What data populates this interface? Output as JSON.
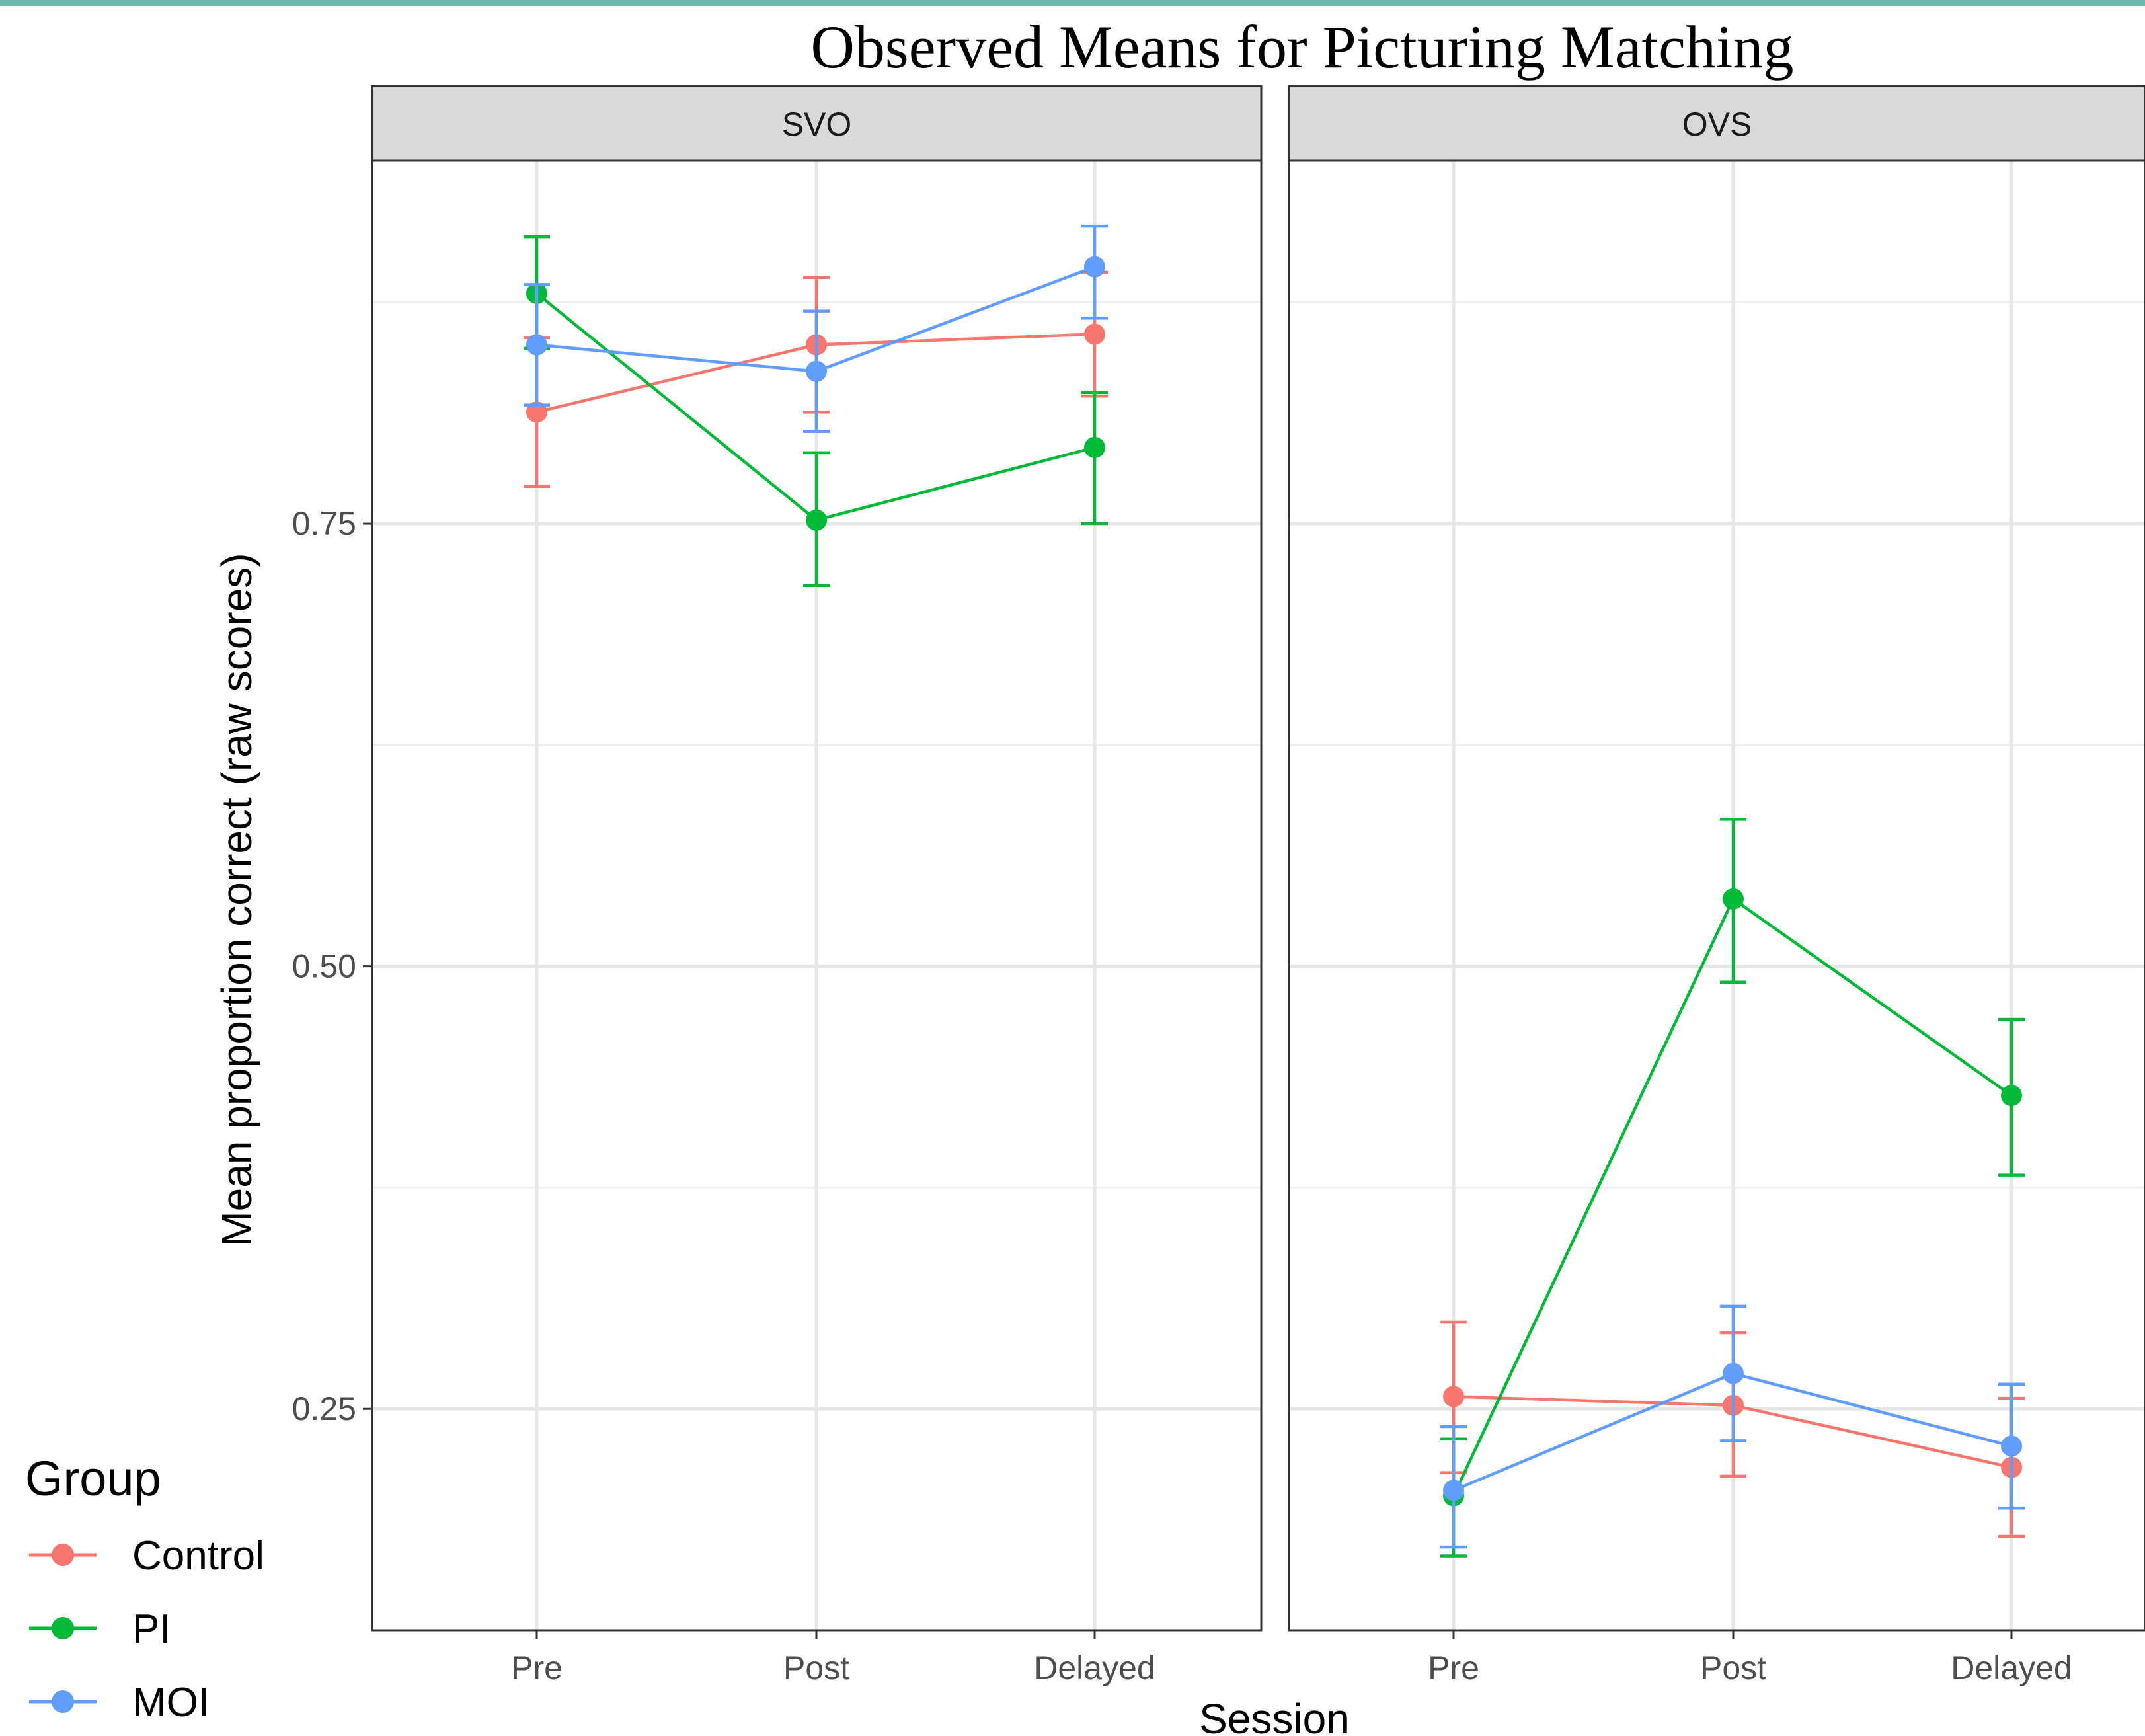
{
  "chart_data": {
    "type": "line",
    "title": "Observed Means for Picturing Matching",
    "xlabel": "Session",
    "ylabel": "Mean proportion correct (raw scores)",
    "categories": [
      "Pre",
      "Post",
      "Delayed"
    ],
    "ylim": [
      0.125,
      0.955
    ],
    "yticks": [
      0.25,
      0.5,
      0.75
    ],
    "ytick_labels": [
      "0.25",
      "0.50",
      "0.75"
    ],
    "grid": true,
    "legend": {
      "title": "Group",
      "placement": "bottom-left"
    },
    "panels": [
      {
        "label": "SVO",
        "series": [
          {
            "name": "Control",
            "color": "#f8766d",
            "values": [
              0.813,
              0.851,
              0.857
            ],
            "lower": [
              0.771,
              0.813,
              0.822
            ],
            "upper": [
              0.855,
              0.889,
              0.892
            ]
          },
          {
            "name": "PI",
            "color": "#00ba38",
            "values": [
              0.88,
              0.752,
              0.793
            ],
            "lower": [
              0.849,
              0.715,
              0.75
            ],
            "upper": [
              0.912,
              0.79,
              0.824
            ]
          },
          {
            "name": "MOI",
            "color": "#619cff",
            "values": [
              0.851,
              0.836,
              0.895
            ],
            "lower": [
              0.817,
              0.802,
              0.866
            ],
            "upper": [
              0.885,
              0.87,
              0.918
            ]
          }
        ]
      },
      {
        "label": "OVS",
        "series": [
          {
            "name": "Control",
            "color": "#f8766d",
            "values": [
              0.257,
              0.252,
              0.217
            ],
            "lower": [
              0.214,
              0.212,
              0.178
            ],
            "upper": [
              0.299,
              0.293,
              0.256
            ]
          },
          {
            "name": "PI",
            "color": "#00ba38",
            "values": [
              0.201,
              0.538,
              0.427
            ],
            "lower": [
              0.167,
              0.491,
              0.382
            ],
            "upper": [
              0.233,
              0.583,
              0.47
            ]
          },
          {
            "name": "MOI",
            "color": "#619cff",
            "values": [
              0.204,
              0.27,
              0.229
            ],
            "lower": [
              0.172,
              0.232,
              0.194
            ],
            "upper": [
              0.24,
              0.308,
              0.264
            ]
          }
        ]
      }
    ]
  }
}
